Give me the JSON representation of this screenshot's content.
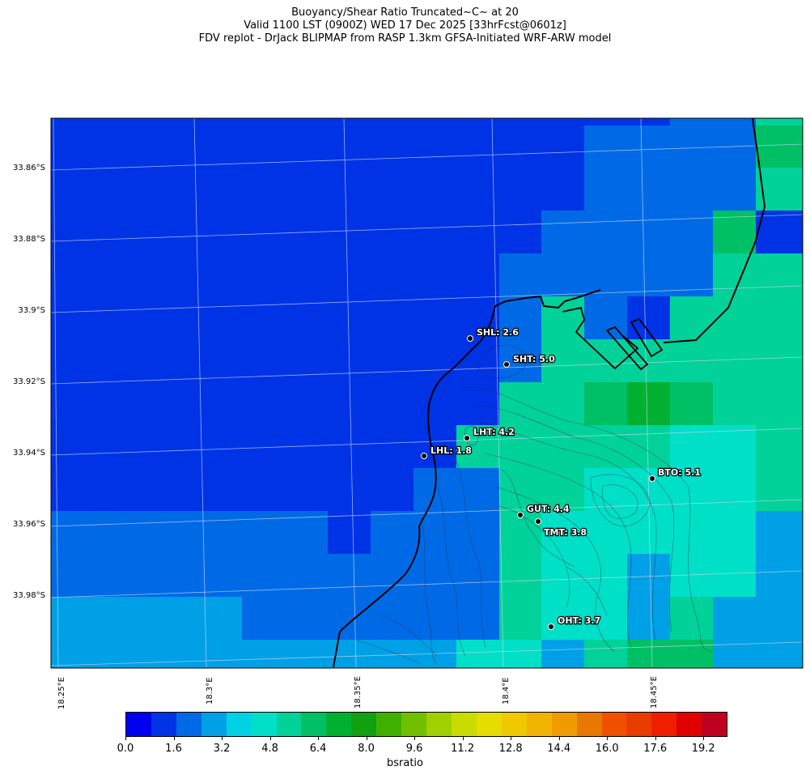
{
  "title": {
    "line1": "Buoyancy/Shear Ratio Truncated~C~    at 20",
    "line2": "Valid 1100 LST (0900Z) WED 17 Dec 2025 [33hrFcst@0601z]",
    "line3": "FDV replot - DrJack BLIPMAP from RASP 1.3km GFSA-Initiated WRF-ARW model"
  },
  "axes": {
    "lon_labels": [
      "18.25°E",
      "18.3°E",
      "18.35°E",
      "18.4°E",
      "18.45°E"
    ],
    "lat_labels": [
      "33.86°S",
      "33.88°S",
      "33.9°S",
      "33.92°S",
      "33.94°S",
      "33.96°S",
      "33.98°S"
    ]
  },
  "stations": [
    {
      "code": "SHL",
      "value": "SHL: 2.6"
    },
    {
      "code": "SHT",
      "value": "SHT: 5.0"
    },
    {
      "code": "LHT",
      "value": "LHT: 4.2"
    },
    {
      "code": "LHL",
      "value": "LHL: 1.8"
    },
    {
      "code": "BTO",
      "value": "BTO: 5.1"
    },
    {
      "code": "GUT",
      "value": "GUT: 4.4"
    },
    {
      "code": "TMT",
      "value": "TMT: 3.8"
    },
    {
      "code": "OHT",
      "value": "OHT: 3.7"
    }
  ],
  "colorbar": {
    "label": "bsratio",
    "ticks": [
      "0.0",
      "1.6",
      "3.2",
      "4.8",
      "6.4",
      "8.0",
      "9.6",
      "11.2",
      "12.8",
      "14.4",
      "16.0",
      "17.6",
      "19.2"
    ],
    "range": [
      0,
      20
    ],
    "colors": [
      "#0000ee",
      "#0033e6",
      "#006ae6",
      "#00a0e6",
      "#00d2e6",
      "#00e0c8",
      "#00d29a",
      "#00c066",
      "#00b030",
      "#10a010",
      "#40b000",
      "#70c000",
      "#a0d000",
      "#c8dc00",
      "#e6dc00",
      "#f0c800",
      "#f0b400",
      "#f09c00",
      "#e87800",
      "#f05000",
      "#e83c00",
      "#f01e00",
      "#e00000",
      "#c00020"
    ]
  },
  "legend_colors": {
    "level_0": "#0033e6",
    "level_1": "#006ae6",
    "level_2": "#00a0e6",
    "level_3": "#00e0c8",
    "level_4": "#00d29a",
    "level_5": "#00c066",
    "level_6": "#00b030"
  }
}
